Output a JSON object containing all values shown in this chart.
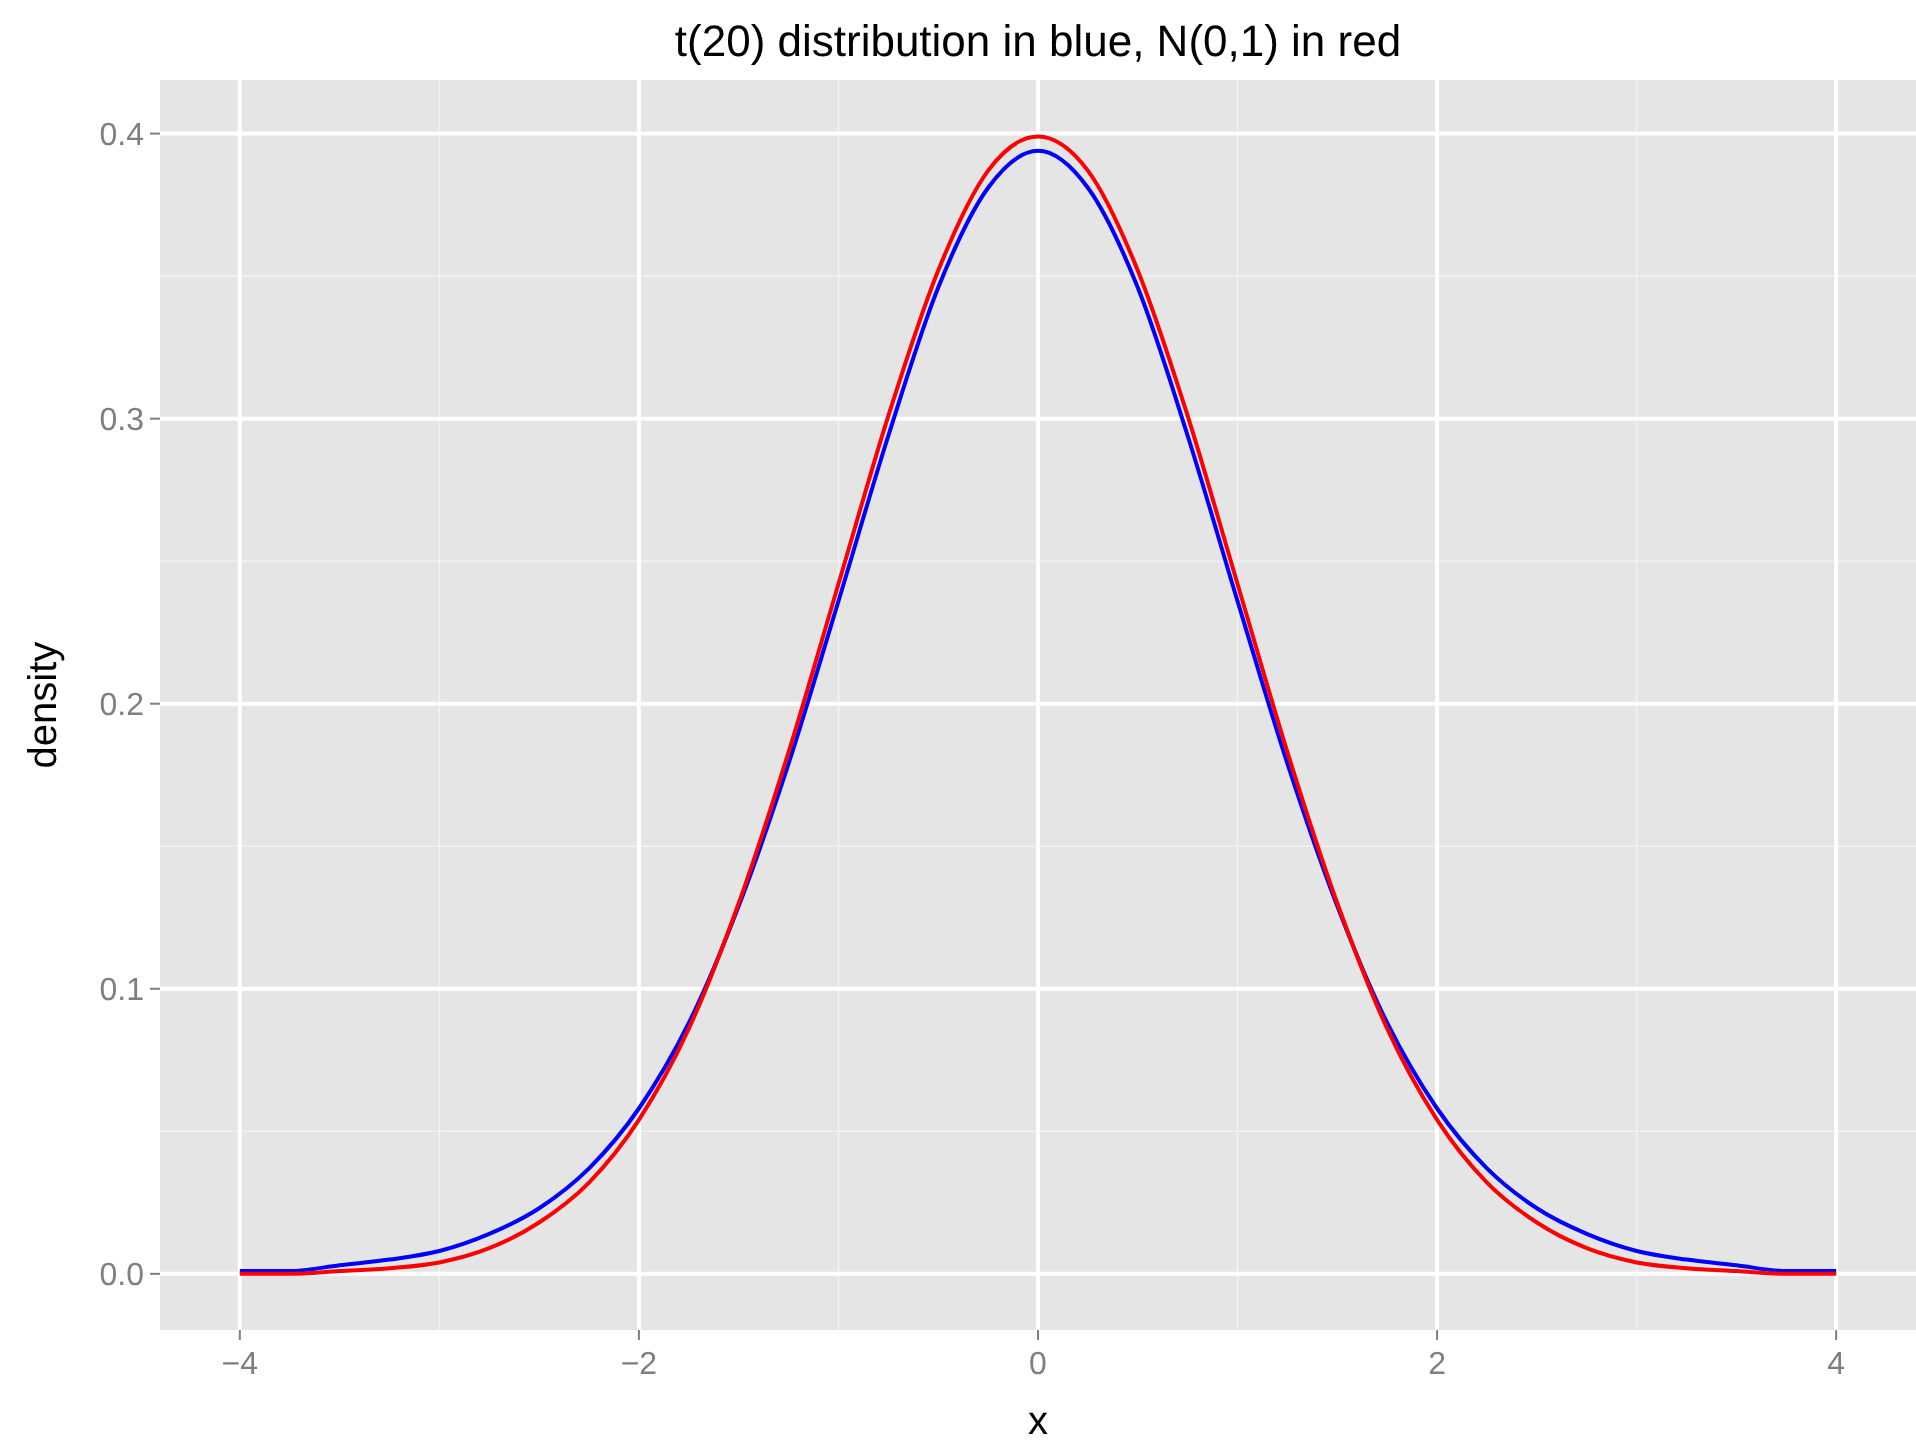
{
  "chart_data": {
    "type": "line",
    "title": "t(20) distribution in blue, N(0,1) in red",
    "xlabel": "x",
    "ylabel": "density",
    "x": [
      -4,
      -3.75,
      -3.5,
      -3.25,
      -3,
      -2.75,
      -2.5,
      -2.25,
      -2,
      -1.75,
      -1.5,
      -1.25,
      -1,
      -0.75,
      -0.5,
      -0.25,
      0,
      0.25,
      0.5,
      0.75,
      1,
      1.25,
      1.5,
      1.75,
      2,
      2.25,
      2.5,
      2.75,
      3,
      3.25,
      3.5,
      3.75,
      4
    ],
    "series": [
      {
        "color": "#0000ff",
        "values": [
          0.001,
          0.001,
          0.003,
          0.005,
          0.008,
          0.014,
          0.023,
          0.037,
          0.058,
          0.088,
          0.129,
          0.179,
          0.236,
          0.294,
          0.346,
          0.381,
          0.394,
          0.381,
          0.346,
          0.294,
          0.236,
          0.179,
          0.129,
          0.088,
          0.058,
          0.037,
          0.023,
          0.014,
          0.008,
          0.005,
          0.003,
          0.001,
          0.001
        ]
      },
      {
        "color": "#ff0000",
        "values": [
          0.0,
          0.0,
          0.001,
          0.002,
          0.004,
          0.009,
          0.018,
          0.032,
          0.054,
          0.086,
          0.13,
          0.183,
          0.242,
          0.301,
          0.352,
          0.387,
          0.399,
          0.387,
          0.352,
          0.301,
          0.242,
          0.183,
          0.13,
          0.086,
          0.054,
          0.032,
          0.018,
          0.009,
          0.004,
          0.002,
          0.001,
          0.0,
          0.0
        ]
      }
    ],
    "xlim": [
      -4.4,
      4.4
    ],
    "ylim": [
      -0.0197,
      0.4188
    ],
    "xticks": [
      {
        "value": -4,
        "label": "−4"
      },
      {
        "value": -2,
        "label": "−2"
      },
      0,
      2,
      4
    ],
    "yticks": [
      {
        "value": 0,
        "label": "0.0"
      },
      0.1,
      0.2,
      0.3,
      0.4
    ],
    "grid": true,
    "marker": "none",
    "line_style": "solid"
  }
}
